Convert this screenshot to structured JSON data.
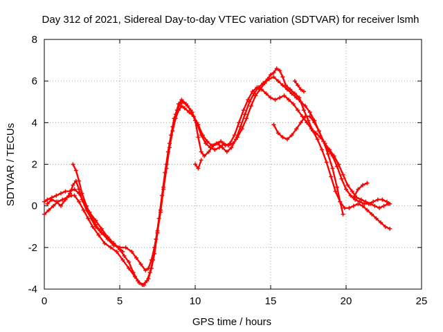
{
  "chart_data": {
    "type": "scatter",
    "title": "Day 312 of 2021, Sidereal Day-to-day VTEC variation (SDTVAR) for receiver lsmh",
    "xlabel": "GPS time / hours",
    "ylabel": "SDTVAR / TECUs",
    "xlim": [
      0,
      25
    ],
    "ylim": [
      -4,
      8
    ],
    "xticks": [
      0,
      5,
      10,
      15,
      20,
      25
    ],
    "yticks": [
      -4,
      -2,
      0,
      2,
      4,
      6,
      8
    ],
    "grid": true,
    "color": "#ff0000",
    "marker": "plus",
    "series": [
      {
        "x": [
          0.0,
          0.2,
          0.5,
          0.8,
          1.1,
          1.4,
          1.7,
          2.0,
          2.3,
          2.6,
          3.0,
          3.4,
          3.8,
          4.2,
          4.6,
          5.0,
          5.3,
          5.6,
          5.9,
          6.2,
          6.5,
          6.8,
          7.0,
          7.2,
          7.4,
          7.6,
          7.8,
          8.0,
          8.2,
          8.4,
          8.6,
          8.8,
          9.0,
          9.2,
          9.5,
          9.8,
          10.1,
          10.4,
          10.7,
          11.0,
          11.3,
          11.6,
          11.9,
          12.2,
          12.5,
          12.8,
          13.1,
          13.4,
          13.7,
          14.0,
          14.3,
          14.6,
          14.9,
          15.2,
          15.5,
          15.8,
          16.1,
          16.4,
          16.7,
          17.0,
          17.3,
          17.6,
          17.9,
          18.2,
          18.5,
          18.8,
          19.1,
          19.4,
          19.7,
          20.0,
          20.3,
          20.6,
          20.9,
          21.2,
          21.5,
          21.8,
          22.1,
          22.4,
          22.7,
          22.9
        ],
        "y": [
          0.2,
          0.3,
          0.4,
          0.5,
          0.6,
          0.7,
          0.7,
          0.8,
          0.6,
          0.2,
          -0.3,
          -0.7,
          -1.1,
          -1.5,
          -1.8,
          -2.1,
          -2.4,
          -2.7,
          -3.2,
          -3.6,
          -3.8,
          -3.6,
          -3.2,
          -2.6,
          -1.6,
          -0.6,
          0.5,
          1.6,
          2.6,
          3.4,
          4.2,
          4.6,
          4.9,
          5.0,
          4.8,
          4.5,
          4.0,
          3.4,
          3.0,
          2.8,
          2.7,
          2.8,
          3.0,
          2.9,
          3.0,
          3.3,
          3.7,
          4.2,
          4.8,
          5.3,
          5.6,
          5.9,
          6.1,
          6.2,
          6.0,
          5.8,
          5.6,
          5.4,
          5.2,
          5.0,
          4.8,
          4.5,
          4.1,
          3.6,
          3.1,
          2.7,
          2.4,
          1.9,
          1.3,
          0.8,
          0.5,
          0.3,
          0.2,
          0.1,
          0.1,
          0.2,
          0.3,
          0.3,
          0.2,
          0.1
        ]
      },
      {
        "x": [
          0.0,
          0.3,
          0.6,
          0.9,
          1.2,
          1.5,
          1.8,
          2.0,
          2.3,
          2.6,
          2.9,
          3.2,
          3.6,
          4.0,
          4.4,
          4.8,
          5.2,
          5.6,
          6.0,
          6.3,
          6.6,
          6.9,
          7.1,
          7.3,
          7.5,
          7.7,
          7.9,
          8.1,
          8.3,
          8.5,
          8.7,
          8.9,
          9.1,
          9.4,
          9.7,
          10.0,
          10.2,
          10.4,
          10.6,
          10.9,
          11.2,
          11.5,
          11.8,
          12.1,
          12.4,
          12.7,
          13.0,
          13.3,
          13.6,
          13.9,
          14.2,
          14.5,
          14.8,
          15.0,
          15.2,
          15.4,
          15.6,
          15.8,
          16.0,
          16.3,
          16.6,
          16.9,
          17.2,
          17.5,
          17.8,
          18.1,
          18.4,
          18.7,
          19.0,
          19.3,
          19.6,
          19.9,
          20.2,
          20.5,
          20.8,
          21.1,
          21.4,
          21.7,
          22.0,
          22.3,
          22.6,
          22.9
        ],
        "y": [
          -0.4,
          -0.2,
          0.0,
          0.2,
          0.3,
          0.4,
          0.5,
          0.5,
          0.2,
          -0.2,
          -0.6,
          -1.0,
          -1.4,
          -1.8,
          -2.0,
          -2.2,
          -2.6,
          -3.0,
          -3.4,
          -3.7,
          -3.8,
          -3.5,
          -3.0,
          -2.3,
          -1.3,
          -0.2,
          0.9,
          2.0,
          3.0,
          3.8,
          4.4,
          4.9,
          5.1,
          4.9,
          4.6,
          4.1,
          3.3,
          2.6,
          2.4,
          2.6,
          2.9,
          3.0,
          2.8,
          2.6,
          2.8,
          3.2,
          3.8,
          4.4,
          5.0,
          5.4,
          5.7,
          5.9,
          6.1,
          6.3,
          6.4,
          6.6,
          6.5,
          6.2,
          5.8,
          5.6,
          5.4,
          5.2,
          4.6,
          4.1,
          3.6,
          3.2,
          2.7,
          2.1,
          1.4,
          0.7,
          0.2,
          -0.1,
          -0.1,
          0.0,
          0.1,
          0.0,
          -0.2,
          -0.4,
          -0.6,
          -0.8,
          -1.0,
          -1.1
        ]
      },
      {
        "x": [
          0.2,
          0.5,
          0.8,
          1.1,
          1.4,
          1.7,
          1.9,
          2.1,
          2.3,
          2.5,
          2.8,
          3.1,
          3.4,
          3.8,
          4.2,
          4.6,
          5.0,
          5.4,
          5.8,
          6.1,
          6.4,
          6.7,
          6.9,
          7.1,
          7.3,
          7.5,
          7.7,
          7.9,
          8.1,
          8.3,
          8.5,
          8.7,
          8.9,
          9.1,
          9.3,
          9.6,
          9.9,
          10.2,
          10.5,
          10.8,
          11.1,
          11.4,
          11.7,
          12.0,
          12.3,
          12.6,
          12.9,
          13.2,
          13.5,
          13.8,
          14.1,
          14.4,
          14.7,
          15.0,
          15.3,
          15.6,
          15.9,
          16.2,
          16.5,
          16.8,
          17.1,
          17.4,
          17.7,
          18.0,
          18.3,
          18.6,
          18.9,
          19.2,
          19.5,
          19.8,
          20.1,
          20.4,
          20.7,
          21.0,
          21.3,
          21.6,
          21.9,
          22.2,
          22.5,
          22.8
        ],
        "y": [
          0.1,
          0.3,
          0.2,
          0.0,
          0.3,
          0.6,
          1.0,
          1.2,
          0.8,
          0.3,
          -0.2,
          -0.6,
          -1.0,
          -1.3,
          -1.6,
          -1.9,
          -2.0,
          -2.0,
          -2.2,
          -2.5,
          -2.8,
          -3.1,
          -3.0,
          -2.6,
          -2.0,
          -1.2,
          -0.3,
          0.8,
          1.8,
          2.8,
          3.6,
          4.2,
          4.6,
          4.8,
          4.7,
          4.5,
          4.3,
          3.9,
          3.4,
          3.1,
          2.9,
          3.0,
          3.1,
          2.9,
          3.0,
          3.4,
          4.0,
          4.6,
          5.1,
          5.5,
          5.7,
          5.6,
          5.4,
          5.2,
          5.1,
          5.2,
          5.3,
          5.1,
          4.9,
          4.6,
          4.3,
          4.0,
          3.7,
          3.5,
          3.3,
          3.0,
          2.7,
          2.4,
          2.0,
          1.5,
          1.0,
          0.7,
          0.4,
          0.3,
          0.2,
          0.1,
          0.0,
          -0.1,
          0.0,
          0.1
        ]
      },
      {
        "x": [
          1.9,
          2.1,
          2.3,
          2.5,
          2.8,
          3.1,
          3.4,
          3.7,
          4.0,
          4.3,
          4.6,
          4.9,
          5.2
        ],
        "y": [
          2.0,
          1.7,
          1.2,
          0.6,
          0.0,
          -0.5,
          -0.9,
          -1.2,
          -1.4,
          -1.6,
          -1.8,
          -2.0,
          -2.2
        ]
      },
      {
        "x": [
          15.2,
          15.5,
          15.8,
          16.1,
          16.4,
          16.7,
          17.0,
          17.3,
          17.6,
          17.9,
          18.2,
          18.5,
          18.8,
          19.1,
          19.4,
          19.6,
          19.8
        ],
        "y": [
          3.9,
          3.5,
          3.3,
          3.2,
          3.4,
          3.7,
          4.0,
          4.3,
          4.3,
          4.0,
          3.6,
          3.1,
          2.5,
          1.8,
          0.9,
          0.2,
          -0.4
        ]
      },
      {
        "x": [
          16.6,
          16.8,
          17.0,
          17.2
        ],
        "y": [
          6.0,
          5.8,
          5.6,
          5.5
        ]
      },
      {
        "x": [
          10.0,
          10.2,
          10.4
        ],
        "y": [
          2.0,
          1.8,
          2.2
        ]
      },
      {
        "x": [
          20.5,
          20.8,
          21.1,
          21.4
        ],
        "y": [
          0.4,
          0.8,
          1.0,
          1.1
        ]
      }
    ]
  }
}
